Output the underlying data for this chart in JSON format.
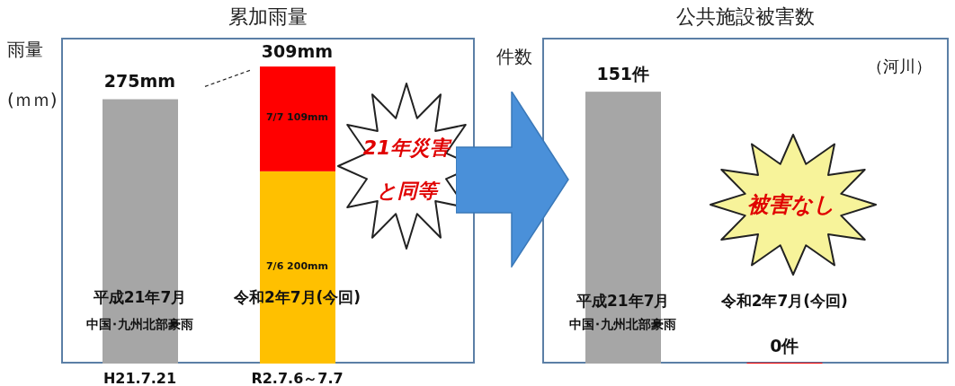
{
  "chart_data": [
    {
      "type": "bar",
      "title": "累加雨量",
      "ylabel": "雨量\n(ｍｍ)",
      "categories": [
        "H21.7.21",
        "R2.7.6～7.7"
      ],
      "stacked": true,
      "tick_labels": "x",
      "series": [
        {
          "colors": [
            "#a6a6a6",
            "#ffc000"
          ],
          "values": [
            275,
            200
          ],
          "value_labels": [
            "275mm",
            "7/6  200mm"
          ]
        },
        {
          "color": "#ff0000",
          "values": [
            null,
            109
          ],
          "value_labels": [
            null,
            "7/7  109mm"
          ]
        }
      ],
      "totals": [
        null,
        "309mm"
      ],
      "annotations": [
        "平成21年7月",
        "中国･九州北部豪雨",
        "令和2年7月(今回)",
        "21年災害",
        "と同等"
      ]
    },
    {
      "type": "bar",
      "title": "公共施設被害数",
      "ylabel": "件数",
      "categories": [
        "平成21年7月",
        "令和2年7月(今回)"
      ],
      "tick_labels": "x",
      "values": [
        151,
        0
      ],
      "colors": [
        "#a6a6a6",
        "#ff0000"
      ],
      "value_labels": [
        "151件",
        "0件"
      ],
      "annotations": [
        "（河川）",
        "中国･九州北部豪雨",
        "被害なし"
      ]
    }
  ]
}
